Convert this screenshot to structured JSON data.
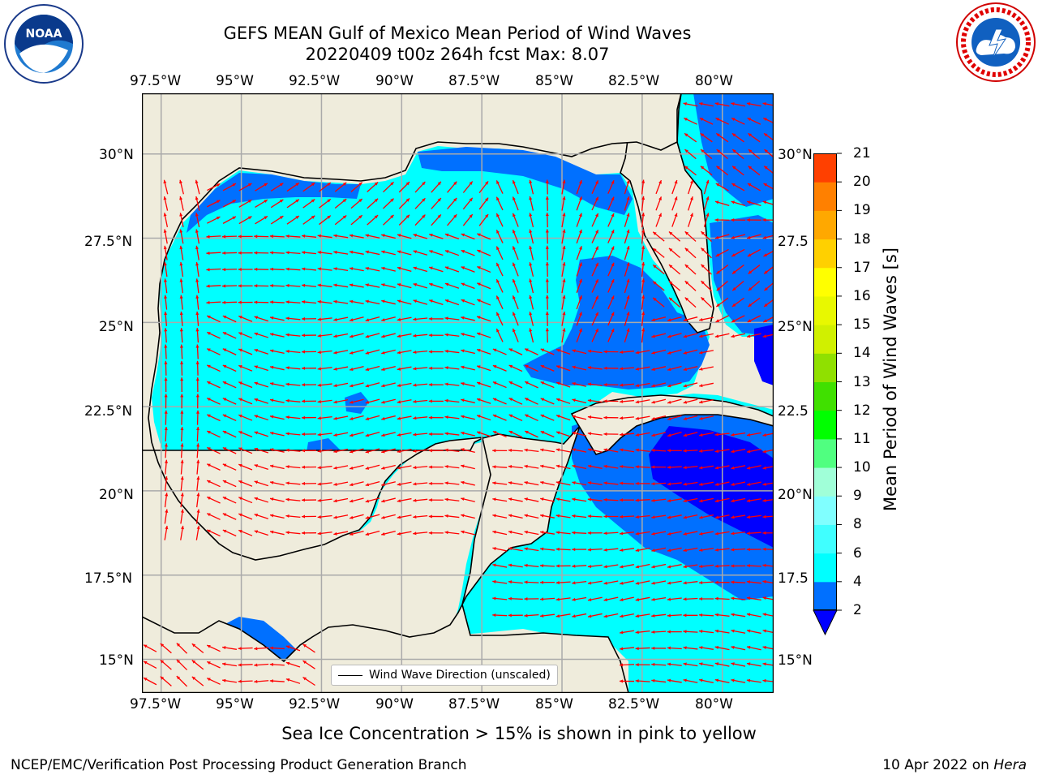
{
  "header": {
    "title_line1": "GEFS MEAN Gulf of Mexico Mean Period of Wind Waves",
    "title_line2": "20220409 t00z 264h fcst   Max: 8.07"
  },
  "logos": {
    "left": "NOAA",
    "left_ring_text": "NATIONAL OCEANIC AND ATMOSPHERIC ADMINISTRATION · U.S. DEPARTMENT OF COMMERCE",
    "right_ring_text": "NATIONAL WEATHER SERVICE"
  },
  "map": {
    "lon_ticks": [
      "97.5°W",
      "95°W",
      "92.5°W",
      "90°W",
      "87.5°W",
      "85°W",
      "82.5°W",
      "80°W"
    ],
    "lat_ticks_left": [
      "30°N",
      "27.5°N",
      "25°N",
      "22.5°N",
      "20°N",
      "17.5°N",
      "15°N"
    ],
    "lat_ticks_right": [
      "30°N",
      "27.5",
      "25°N",
      "22.5",
      "20°N",
      "17.5",
      "15°N"
    ],
    "lon_range": [
      -98.1,
      -78.4
    ],
    "lat_range": [
      14.0,
      31.8
    ],
    "legend_label": "Wind Wave Direction (unscaled)",
    "arrow_color": "#ff0000",
    "land_color": "#efecdc",
    "grid": true
  },
  "colorbar": {
    "label": "Mean Period of Wind Waves [s]",
    "levels": [
      "2",
      "4",
      "6",
      "8",
      "9",
      "10",
      "11",
      "12",
      "13",
      "14",
      "15",
      "16",
      "17",
      "18",
      "19",
      "20",
      "21"
    ],
    "colors": [
      "#0070ff",
      "#00ffff",
      "#40ffff",
      "#80ffff",
      "#a0ffd8",
      "#50ff80",
      "#00ff00",
      "#40e000",
      "#90e000",
      "#d0f000",
      "#e8f800",
      "#ffff00",
      "#ffd000",
      "#ffa800",
      "#ff8000",
      "#ff4000",
      "#ff0000"
    ],
    "under_color": "#0000ff",
    "legend_type": "filled contour"
  },
  "caption": "Sea Ice Concentration > 15% is shown in pink to yellow",
  "footer": {
    "left": "NCEP/EMC/Verification Post Processing Product Generation Branch",
    "date": "10 Apr 2022 on ",
    "machine": "Hera"
  }
}
